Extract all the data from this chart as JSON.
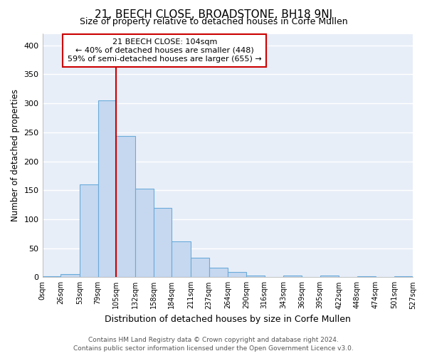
{
  "title": "21, BEECH CLOSE, BROADSTONE, BH18 9NJ",
  "subtitle": "Size of property relative to detached houses in Corfe Mullen",
  "xlabel": "Distribution of detached houses by size in Corfe Mullen",
  "ylabel": "Number of detached properties",
  "footer_line1": "Contains HM Land Registry data © Crown copyright and database right 2024.",
  "footer_line2": "Contains public sector information licensed under the Open Government Licence v3.0.",
  "annotation_title": "21 BEECH CLOSE: 104sqm",
  "annotation_line2": "← 40% of detached houses are smaller (448)",
  "annotation_line3": "59% of semi-detached houses are larger (655) →",
  "bin_edges": [
    0,
    26,
    53,
    79,
    105,
    132,
    158,
    184,
    211,
    237,
    264,
    290,
    316,
    343,
    369,
    395,
    422,
    448,
    474,
    501,
    527
  ],
  "bar_heights": [
    2,
    5,
    160,
    305,
    244,
    153,
    120,
    62,
    33,
    16,
    9,
    3,
    0,
    3,
    0,
    3,
    0,
    1,
    0,
    2
  ],
  "bar_color": "#c5d8f0",
  "bar_edge_color": "#6aabda",
  "vline_color": "#cc0000",
  "vline_x": 105,
  "fig_background": "#ffffff",
  "plot_background": "#e8eef8",
  "grid_color": "#ffffff",
  "ylim": [
    0,
    420
  ],
  "yticks": [
    0,
    50,
    100,
    150,
    200,
    250,
    300,
    350,
    400
  ],
  "tick_labels": [
    "0sqm",
    "26sqm",
    "53sqm",
    "79sqm",
    "105sqm",
    "132sqm",
    "158sqm",
    "184sqm",
    "211sqm",
    "237sqm",
    "264sqm",
    "290sqm",
    "316sqm",
    "343sqm",
    "369sqm",
    "395sqm",
    "422sqm",
    "448sqm",
    "474sqm",
    "501sqm",
    "527sqm"
  ]
}
